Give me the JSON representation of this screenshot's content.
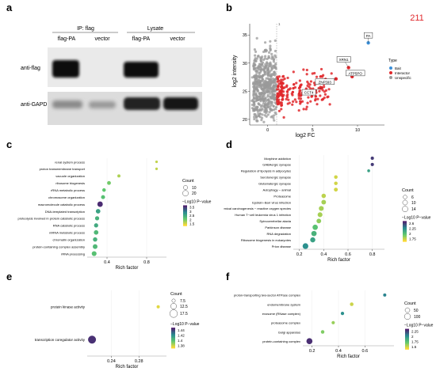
{
  "panels": {
    "a": {
      "letter": "a",
      "header_ip": "IP: flag",
      "header_lysate": "Lysate",
      "lane_labels": [
        "flag-PA",
        "vector",
        "flag-PA",
        "vector"
      ],
      "row_labels": [
        "anti-flag",
        "anti-GAPDH"
      ]
    },
    "b": {
      "letter": "b",
      "count_label": "211",
      "count_color": "#e0282c",
      "tick_vline_label": "1",
      "xlabel": "log2 FC",
      "ylabel": "log2 intensity",
      "xlim": [
        -2,
        13
      ],
      "ylim": [
        19,
        37
      ],
      "xticks": [
        0,
        5,
        10
      ],
      "yticks": [
        20,
        25,
        30,
        35
      ],
      "legend_title": "Type",
      "legend_items": [
        {
          "label": "Bait",
          "color": "#3b8fd8"
        },
        {
          "label": "Interactor",
          "color": "#e0282c"
        },
        {
          "label": "Unspecific",
          "color": "#9a9a9a"
        }
      ],
      "annotations": [
        "PA",
        "XRN1",
        "ATP5PO",
        "ZNF593",
        "CCT4"
      ]
    },
    "c": {
      "letter": "c"
    },
    "d": {
      "letter": "d"
    },
    "e": {
      "letter": "e"
    },
    "f": {
      "letter": "f"
    }
  },
  "chart_data": [
    {
      "panel": "b",
      "type": "scatter",
      "xlabel": "log2 FC",
      "ylabel": "log2 intensity",
      "xlim": [
        -2,
        13
      ],
      "ylim": [
        19,
        37
      ],
      "labeled_points": [
        {
          "label": "PA",
          "x": 11.2,
          "y": 33.6,
          "type": "Bait"
        },
        {
          "label": "XRN1",
          "x": 9.0,
          "y": 29.2,
          "type": "Interactor"
        },
        {
          "label": "ATP5PO",
          "x": 9.4,
          "y": 27.6,
          "type": "Interactor"
        },
        {
          "label": "ZNF593",
          "x": 7.6,
          "y": 27.2,
          "type": "Interactor"
        },
        {
          "label": "CCT4",
          "x": 6.0,
          "y": 25.6,
          "type": "Interactor"
        }
      ]
    },
    {
      "panel": "c",
      "type": "scatter",
      "xlabel": "Rich factor",
      "xticks": [
        0.4,
        0.8
      ],
      "xlim": [
        0.2,
        1.0
      ],
      "categories": [
        "renal system process",
        "proton transmembrane transport",
        "vacuole organization",
        "ribosome biogenesis",
        "rRNA metabolic process",
        "chromosome organization",
        "macromolecule catabolic process",
        "DNA-templated transcription",
        "proteolysis involved in protein catabolic process",
        "RNA catabolic process",
        "mRNA metabolic process",
        "chromatin organization",
        "protein-containing complex assembly",
        "rRNA processing"
      ],
      "values": [
        0.9,
        0.9,
        0.52,
        0.42,
        0.37,
        0.36,
        0.33,
        0.31,
        0.3,
        0.29,
        0.29,
        0.28,
        0.28,
        0.27
      ],
      "counts": [
        3,
        3,
        5,
        8,
        7,
        9,
        18,
        12,
        10,
        10,
        12,
        11,
        13,
        14
      ],
      "neglog10p": [
        1.6,
        1.6,
        1.7,
        2.0,
        2.1,
        2.2,
        3.6,
        2.6,
        2.4,
        2.5,
        2.3,
        2.4,
        2.3,
        2.2
      ],
      "legend": {
        "count_title": "Count",
        "count_values": [
          10,
          20
        ],
        "color_title": "−Log10 P−value",
        "color_ticks": [
          3.5,
          3.0,
          2.5,
          2.0,
          1.5
        ],
        "crange": [
          1.3,
          3.7
        ]
      }
    },
    {
      "panel": "d",
      "type": "scatter",
      "xlabel": "Rich factor",
      "xticks": [
        0.2,
        0.4,
        0.6,
        0.8
      ],
      "xlim": [
        0.15,
        0.9
      ],
      "categories": [
        "Morphine addiction",
        "GABAergic synapse",
        "Regulation of lipolysis in adipocytes",
        "Serotonergic synapse",
        "Glutamatergic synapse",
        "Autophagy − animal",
        "Proteasome",
        "Epstein−Barr virus infection",
        "Chemical carcinogenesis − reactive oxygen species",
        "Human T−cell leukemia virus 1 infection",
        "Spinocerebellar ataxia",
        "Parkinson disease",
        "RNA degradation",
        "Ribosome biogenesis in eukaryotes",
        "Prion disease"
      ],
      "values": [
        0.8,
        0.8,
        0.77,
        0.5,
        0.5,
        0.5,
        0.4,
        0.4,
        0.38,
        0.37,
        0.36,
        0.33,
        0.32,
        0.31,
        0.25
      ],
      "counts": [
        4,
        4,
        3,
        5,
        5,
        6,
        8,
        9,
        10,
        10,
        9,
        12,
        12,
        11,
        14
      ],
      "neglog10p": [
        2.6,
        2.6,
        2.2,
        1.7,
        1.7,
        1.7,
        1.75,
        1.8,
        1.8,
        1.8,
        1.85,
        2.0,
        2.1,
        2.2,
        2.3
      ],
      "legend": {
        "count_title": "Count",
        "count_values": [
          6,
          10,
          14
        ],
        "color_title": "−Log10 P−value",
        "color_ticks": [
          2.6,
          2.25,
          2.0,
          1.75
        ],
        "crange": [
          1.6,
          2.7
        ]
      }
    },
    {
      "panel": "e",
      "type": "scatter",
      "xlabel": "Rich factor",
      "xticks": [
        0.24,
        0.28
      ],
      "xlim": [
        0.205,
        0.32
      ],
      "categories": [
        "protein kinase activity",
        "transcription coregulator activity"
      ],
      "values": [
        0.308,
        0.212
      ],
      "counts": [
        7,
        18
      ],
      "neglog10p": [
        1.37,
        1.445
      ],
      "legend": {
        "count_title": "Count",
        "count_values": [
          7.5,
          12.5,
          17.5
        ],
        "color_title": "−Log10 P−value",
        "color_ticks": [
          1.44,
          1.42,
          1.4,
          1.38
        ],
        "crange": [
          1.365,
          1.45
        ]
      }
    },
    {
      "panel": "f",
      "type": "scatter",
      "xlabel": "Rich factor",
      "xticks": [
        0.2,
        0.4,
        0.6
      ],
      "xlim": [
        0.13,
        0.82
      ],
      "categories": [
        "proton-transporting two-sector ATPase complex",
        "endomembrane system",
        "exosome (RNase complex)",
        "proteasome complex",
        "Golgi apparatus",
        "protein-containing complex"
      ],
      "values": [
        0.75,
        0.5,
        0.43,
        0.36,
        0.28,
        0.18
      ],
      "counts": [
        12,
        20,
        15,
        14,
        18,
        100
      ],
      "neglog10p": [
        2.1,
        1.55,
        2.05,
        1.65,
        1.7,
        2.35
      ],
      "legend": {
        "count_title": "Count",
        "count_values": [
          50,
          100
        ],
        "color_title": "−Log10 P−value",
        "color_ticks": [
          2.25,
          2.0,
          1.75,
          1.5
        ],
        "crange": [
          1.45,
          2.4
        ]
      }
    }
  ]
}
